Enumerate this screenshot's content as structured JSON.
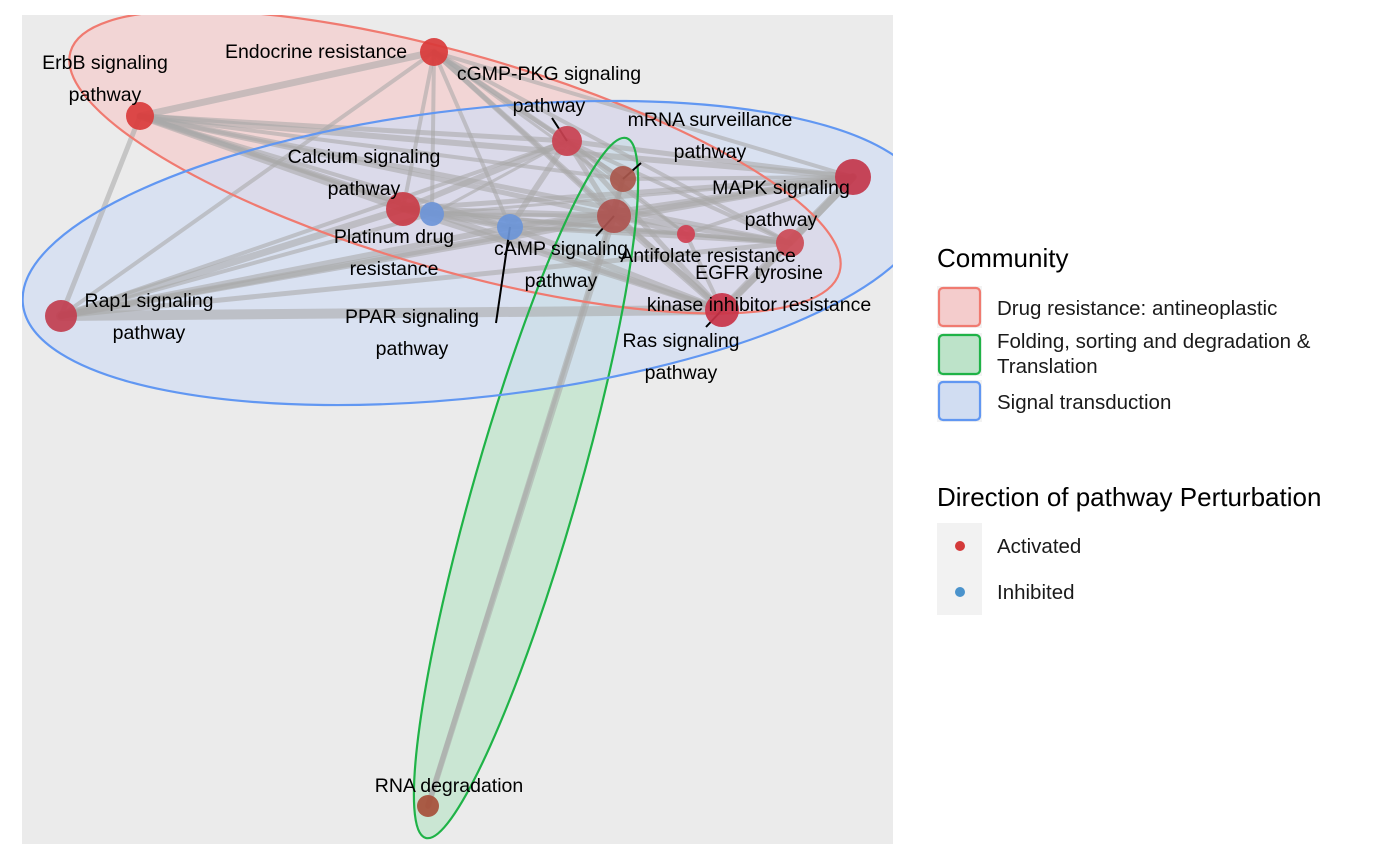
{
  "legend": {
    "community": {
      "title": "Community",
      "items": [
        {
          "label": "Drug resistance: antineoplastic",
          "fill": "#f4cccc",
          "stroke": "#f07a70"
        },
        {
          "label_lines": [
            "Folding, sorting and degradation &",
            "Translation"
          ],
          "fill": "#bde3c9",
          "stroke": "#1fb347"
        },
        {
          "label": "Signal transduction",
          "fill": "#d1ddf2",
          "stroke": "#6197f2"
        }
      ]
    },
    "direction": {
      "title": "Direction of pathway Perturbation",
      "items": [
        {
          "label": "Activated",
          "color": "#d43a3a"
        },
        {
          "label": "Inhibited",
          "color": "#4b93cc"
        }
      ]
    }
  },
  "nodes": [
    {
      "id": "endocrine",
      "label_lines": [
        "Endocrine resistance"
      ],
      "color": "#d93a3a"
    },
    {
      "id": "erbb",
      "label_lines": [
        "ErbB signaling",
        "pathway"
      ],
      "color": "#da3b3b"
    },
    {
      "id": "cgmp",
      "label_lines": [
        "cGMP-PKG signaling",
        "pathway"
      ],
      "color": "#c94150"
    },
    {
      "id": "mrna",
      "label_lines": [
        "mRNA surveillance",
        "pathway"
      ],
      "color": "#a9574c"
    },
    {
      "id": "mapk",
      "label_lines": [
        "MAPK signaling",
        "pathway"
      ],
      "color": "#c3364b"
    },
    {
      "id": "calcium",
      "label_lines": [
        "Calcium signaling",
        "pathway"
      ],
      "color": "#c93d48"
    },
    {
      "id": "platinum",
      "label_lines": [
        "Platinum drug",
        "resistance"
      ],
      "color": "#6e95d8"
    },
    {
      "id": "camp",
      "label_lines": [
        "cAMP signaling",
        "pathway"
      ],
      "color": "#6b95d8"
    },
    {
      "id": "center",
      "label_lines": [],
      "color": "#ad5450"
    },
    {
      "id": "antifolate",
      "label_lines": [
        "Antifolate resistance"
      ],
      "color": "#cf3f51"
    },
    {
      "id": "egfr",
      "label_lines": [
        "EGFR tyrosine",
        "kinase inhibitor resistance"
      ],
      "color": "#cc4a55"
    },
    {
      "id": "ras",
      "label_lines": [
        "Ras signaling",
        "pathway"
      ],
      "color": "#c93348"
    },
    {
      "id": "rap1",
      "label_lines": [
        "Rap1 signaling",
        "pathway"
      ],
      "color": "#c13e4f"
    },
    {
      "id": "ppar",
      "label_lines": [
        "PPAR signaling",
        "pathway"
      ],
      "color": "#000000"
    },
    {
      "id": "rna_deg",
      "label_lines": [
        "RNA degradation"
      ],
      "color": "#a64f38"
    }
  ]
}
